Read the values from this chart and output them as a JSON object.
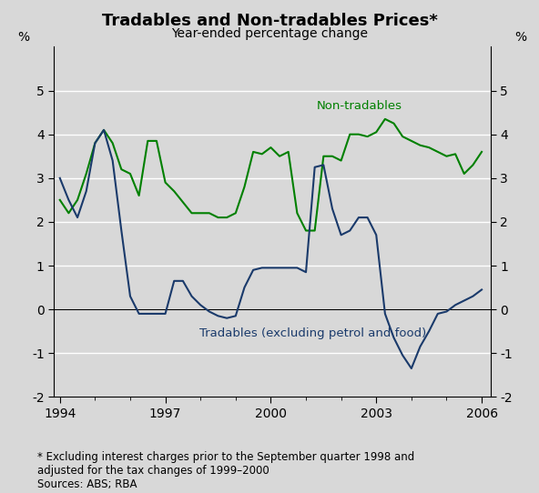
{
  "title": "Tradables and Non-tradables Prices*",
  "subtitle": "Year-ended percentage change",
  "footnote": "* Excluding interest charges prior to the September quarter 1998 and\nadjusted for the tax changes of 1999–2000\nSources: ABS; RBA",
  "ylim": [
    -2,
    6
  ],
  "yticks": [
    -2,
    -1,
    0,
    1,
    2,
    3,
    4,
    5
  ],
  "background_color": "#e0e0e0",
  "plot_bg_color": "#e8e8e8",
  "tradables_color": "#1a3a6b",
  "nontradables_color": "#008000",
  "tradables_label": "Tradables (excluding petrol and food)",
  "nontradables_label": "Non-tradables",
  "dates": [
    1994.0,
    1994.25,
    1994.5,
    1994.75,
    1995.0,
    1995.25,
    1995.5,
    1995.75,
    1996.0,
    1996.25,
    1996.5,
    1996.75,
    1997.0,
    1997.25,
    1997.5,
    1997.75,
    1998.0,
    1998.25,
    1998.5,
    1998.75,
    1999.0,
    1999.25,
    1999.5,
    1999.75,
    2000.0,
    2000.25,
    2000.5,
    2000.75,
    2001.0,
    2001.25,
    2001.5,
    2001.75,
    2002.0,
    2002.25,
    2002.5,
    2002.75,
    2003.0,
    2003.25,
    2003.5,
    2003.75,
    2004.0,
    2004.25,
    2004.5,
    2004.75,
    2005.0,
    2005.25,
    2005.5,
    2005.75,
    2006.0
  ],
  "tradables": [
    3.0,
    2.5,
    2.1,
    2.7,
    3.8,
    4.1,
    3.4,
    1.8,
    0.3,
    -0.1,
    -0.1,
    -0.1,
    -0.1,
    0.65,
    0.65,
    0.3,
    0.1,
    -0.05,
    -0.15,
    -0.2,
    -0.15,
    0.5,
    0.9,
    0.95,
    0.95,
    0.95,
    0.95,
    0.95,
    0.85,
    3.25,
    3.3,
    2.3,
    1.7,
    1.8,
    2.1,
    2.1,
    1.7,
    -0.1,
    -0.65,
    -1.05,
    -1.35,
    -0.85,
    -0.5,
    -0.1,
    -0.05,
    0.1,
    0.2,
    0.3,
    0.45
  ],
  "nontradables": [
    2.5,
    2.2,
    2.5,
    3.1,
    3.8,
    4.1,
    3.8,
    3.2,
    3.1,
    2.6,
    3.85,
    3.85,
    2.9,
    2.7,
    2.45,
    2.2,
    2.2,
    2.2,
    2.1,
    2.1,
    2.2,
    2.8,
    3.6,
    3.55,
    3.7,
    3.5,
    3.6,
    2.2,
    1.8,
    1.8,
    3.5,
    3.5,
    3.4,
    4.0,
    4.0,
    3.95,
    4.05,
    4.35,
    4.25,
    3.95,
    3.85,
    3.75,
    3.7,
    3.6,
    3.5,
    3.55,
    3.1,
    3.3,
    3.6
  ],
  "xtick_years": [
    1994,
    1997,
    2000,
    2003,
    2006
  ],
  "xlim": [
    1993.83,
    2006.25
  ]
}
